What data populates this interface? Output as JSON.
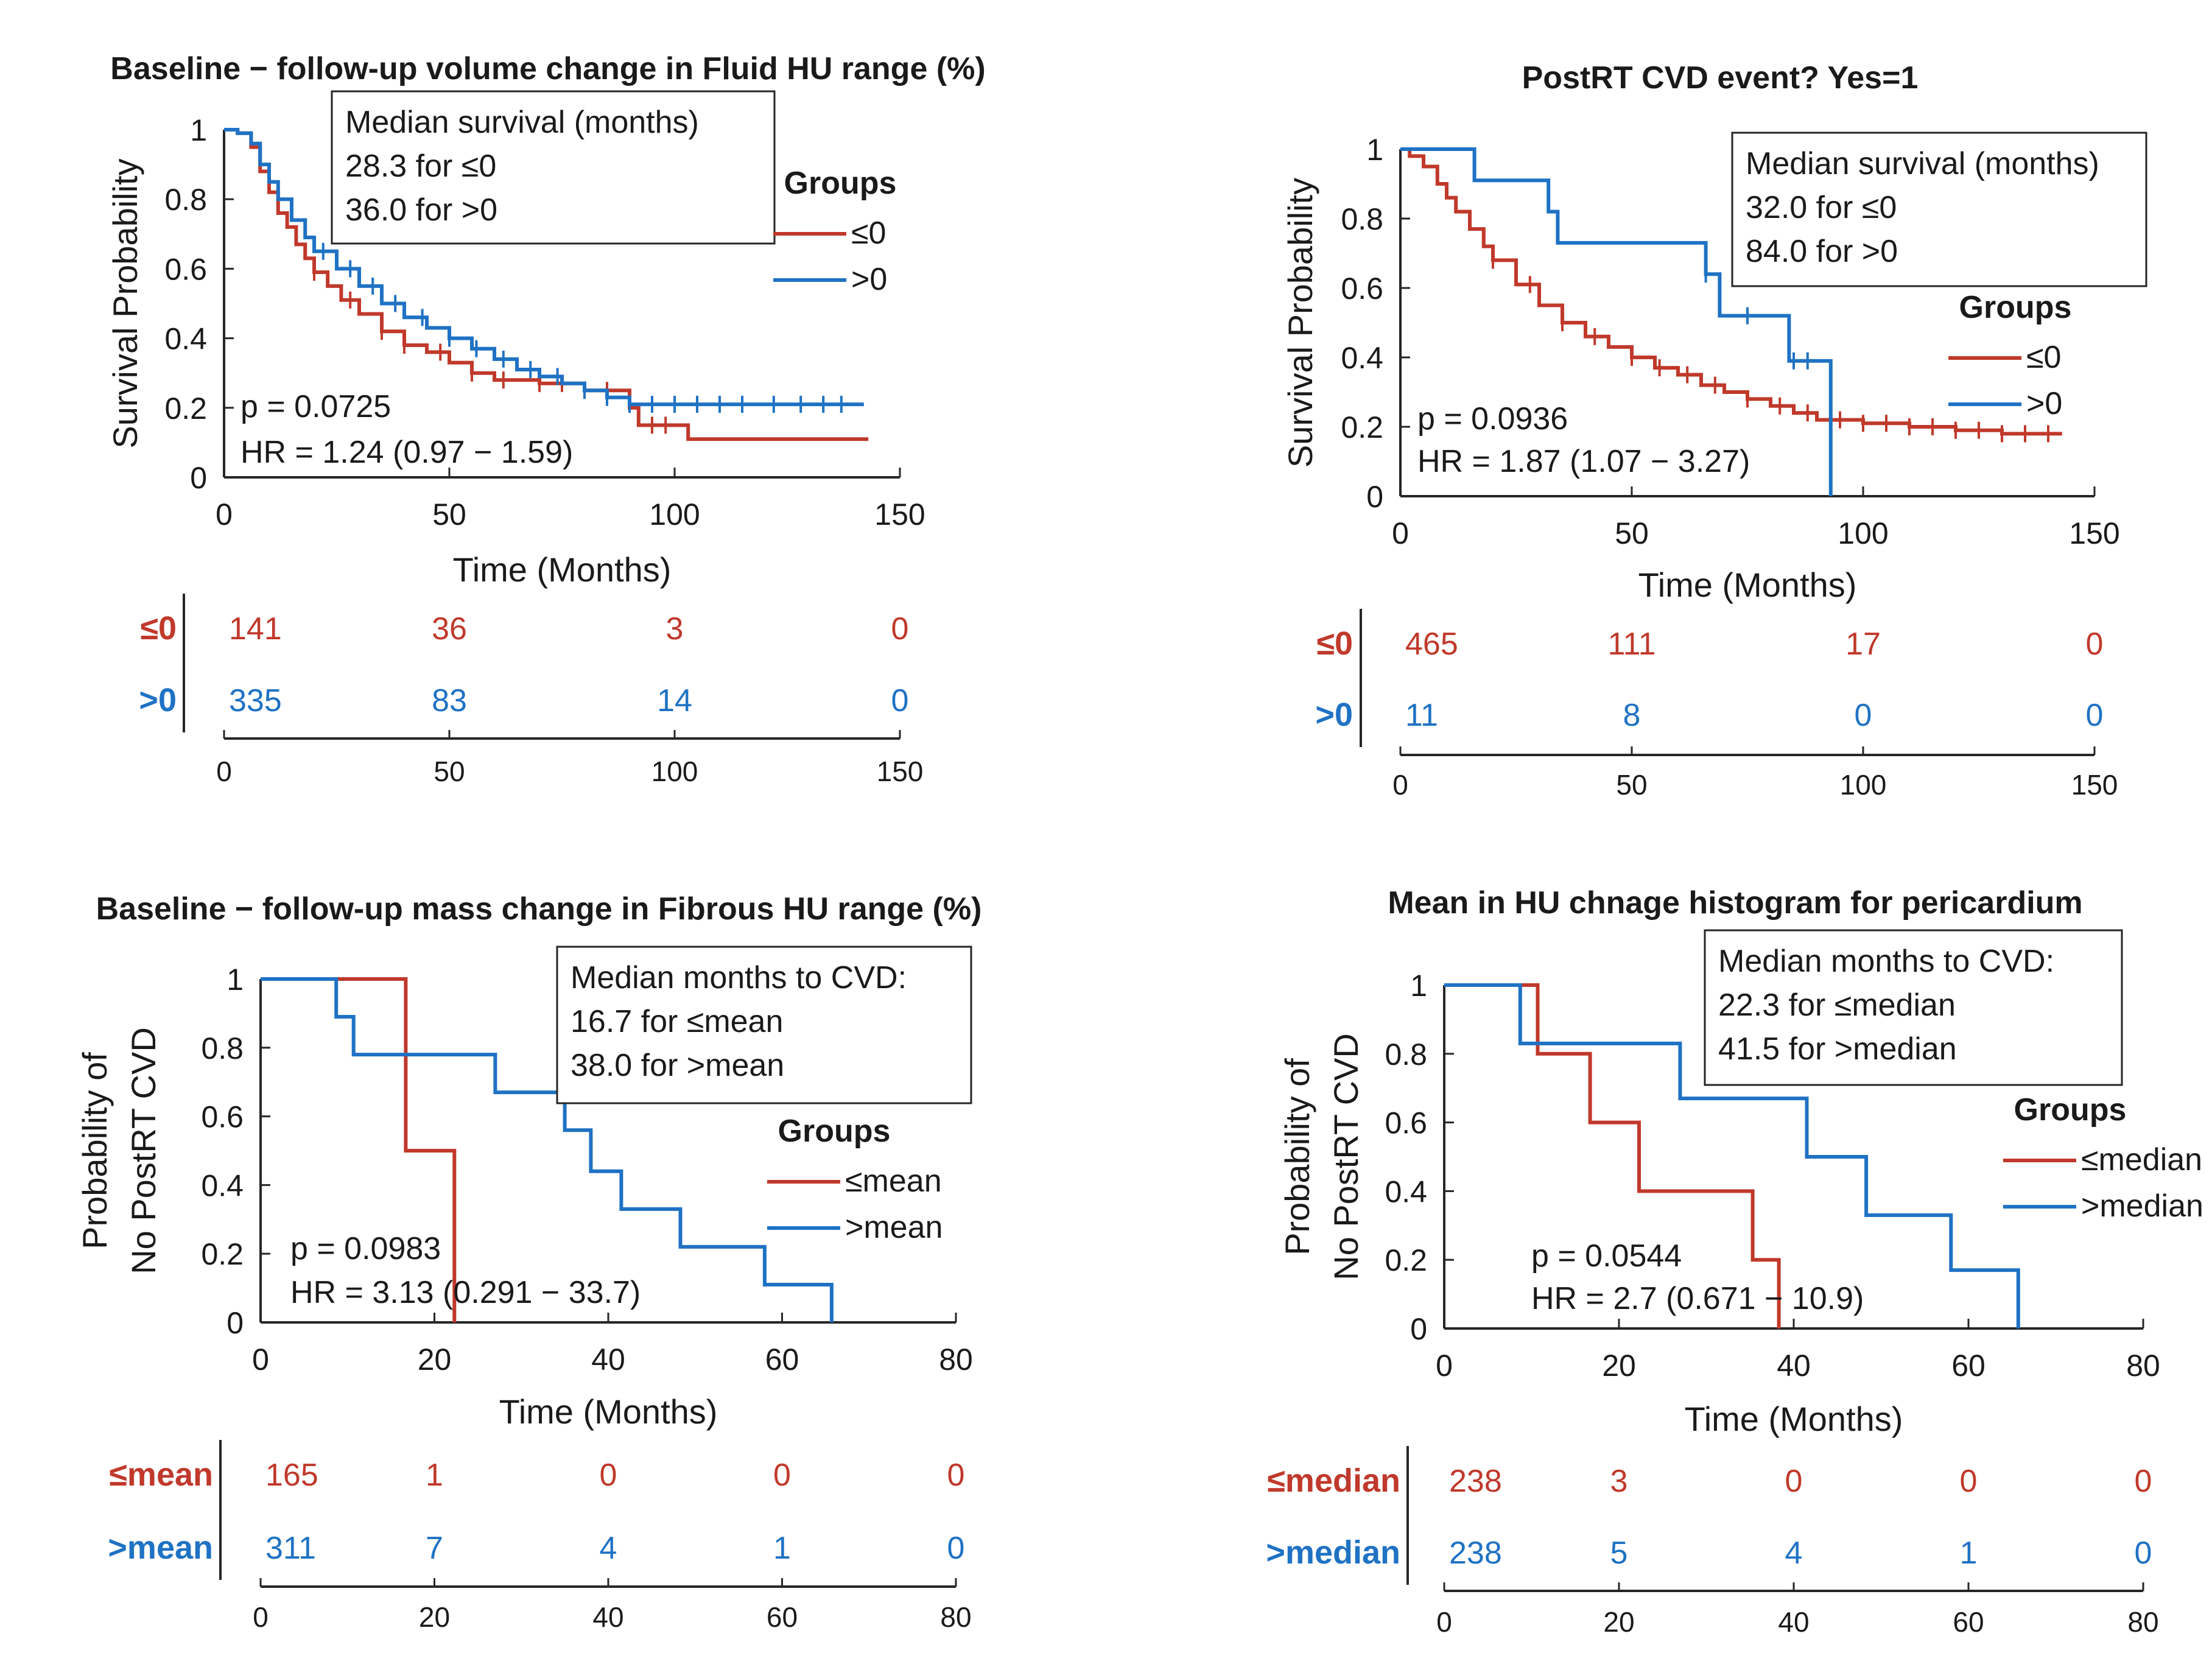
{
  "colors": {
    "red": "#C0392B",
    "blue": "#1F72C4",
    "axis": "#262626",
    "text": "#1a1a1a"
  },
  "chart_data": [
    {
      "type": "line",
      "title": "Baseline − follow-up volume change in Fluid HU range (%)",
      "ylabel": "Survival Probability",
      "ylabel_lines": [
        "Survival Probability"
      ],
      "xlabel": "Time (Months)",
      "xlim": [
        0,
        150
      ],
      "ylim": [
        0,
        1
      ],
      "x_ticks": [
        "0",
        "50",
        "100",
        "150"
      ],
      "x_tick_values": [
        0,
        50,
        100,
        150
      ],
      "y_ticks": [
        "0",
        "0.2",
        "0.4",
        "0.6",
        "0.8",
        "1"
      ],
      "y_tick_values": [
        0,
        0.2,
        0.4,
        0.6,
        0.8,
        1
      ],
      "annotation": {
        "title": "Median survival (months)",
        "lines": [
          "28.3 for ≤0",
          "36.0 for >0"
        ]
      },
      "legend_title": "Groups",
      "p_text": "p = 0.0725",
      "hr_text": "HR = 1.24 (0.97 − 1.59)",
      "series": [
        {
          "name": "≤0",
          "color": "red",
          "x": [
            0,
            3,
            6,
            8,
            10,
            12,
            14,
            16,
            18,
            20,
            23,
            26,
            30,
            35,
            40,
            45,
            50,
            55,
            60,
            70,
            80,
            90,
            92,
            100,
            103,
            143
          ],
          "y": [
            1,
            0.99,
            0.95,
            0.88,
            0.82,
            0.76,
            0.72,
            0.67,
            0.63,
            0.59,
            0.55,
            0.51,
            0.47,
            0.42,
            0.38,
            0.36,
            0.33,
            0.3,
            0.28,
            0.27,
            0.25,
            0.2,
            0.15,
            0.15,
            0.11,
            0.11
          ],
          "censors": [
            20,
            28,
            35,
            40,
            48,
            55,
            62,
            70,
            75,
            85,
            95,
            98
          ]
        },
        {
          "name": ">0",
          "color": "blue",
          "x": [
            0,
            3,
            6,
            8,
            10,
            12,
            15,
            18,
            20,
            25,
            30,
            35,
            40,
            45,
            50,
            55,
            60,
            65,
            70,
            75,
            80,
            85,
            90,
            142
          ],
          "y": [
            1,
            0.99,
            0.96,
            0.9,
            0.85,
            0.8,
            0.74,
            0.69,
            0.65,
            0.6,
            0.55,
            0.5,
            0.46,
            0.43,
            0.4,
            0.37,
            0.34,
            0.31,
            0.29,
            0.27,
            0.25,
            0.23,
            0.21,
            0.21
          ],
          "censors": [
            22,
            28,
            33,
            38,
            44,
            50,
            56,
            62,
            68,
            74,
            80,
            85,
            90,
            95,
            100,
            105,
            110,
            115,
            122,
            128,
            133,
            137
          ]
        }
      ],
      "risk_table": {
        "ticks": [
          "0",
          "50",
          "100",
          "150"
        ],
        "rows": [
          {
            "label": "≤0",
            "color": "red",
            "values": [
              "141",
              "36",
              "3",
              "0"
            ]
          },
          {
            "label": ">0",
            "color": "blue",
            "values": [
              "335",
              "83",
              "14",
              "0"
            ]
          }
        ]
      }
    },
    {
      "type": "line",
      "title": "PostRT CVD event? Yes=1",
      "ylabel": "Survival Probability",
      "ylabel_lines": [
        "Survival Probability"
      ],
      "xlabel": "Time (Months)",
      "xlim": [
        0,
        150
      ],
      "ylim": [
        0,
        1
      ],
      "x_ticks": [
        "0",
        "50",
        "100",
        "150"
      ],
      "x_tick_values": [
        0,
        50,
        100,
        150
      ],
      "y_ticks": [
        "0",
        "0.2",
        "0.4",
        "0.6",
        "0.8",
        "1"
      ],
      "y_tick_values": [
        0,
        0.2,
        0.4,
        0.6,
        0.8,
        1
      ],
      "annotation": {
        "title": "Median survival (months)",
        "lines": [
          "32.0 for ≤0",
          "84.0 for >0"
        ]
      },
      "legend_title": "Groups",
      "p_text": "p = 0.0936",
      "hr_text": "HR = 1.87 (1.07 − 3.27)",
      "series": [
        {
          "name": "≤0",
          "color": "red",
          "x": [
            0,
            2,
            5,
            8,
            10,
            12,
            15,
            18,
            20,
            25,
            30,
            35,
            40,
            45,
            50,
            55,
            60,
            65,
            70,
            75,
            80,
            85,
            90,
            100,
            110,
            120,
            130,
            143
          ],
          "y": [
            1,
            0.98,
            0.95,
            0.9,
            0.86,
            0.82,
            0.77,
            0.72,
            0.68,
            0.61,
            0.55,
            0.5,
            0.46,
            0.43,
            0.4,
            0.37,
            0.35,
            0.32,
            0.3,
            0.28,
            0.26,
            0.24,
            0.22,
            0.21,
            0.2,
            0.19,
            0.18,
            0.18
          ],
          "censors": [
            20,
            28,
            35,
            42,
            50,
            56,
            62,
            68,
            75,
            82,
            88,
            95,
            100,
            105,
            110,
            115,
            120,
            125,
            130,
            135,
            140
          ]
        },
        {
          "name": ">0",
          "color": "blue",
          "x": [
            0,
            16,
            16,
            32,
            32,
            34,
            34,
            66,
            66,
            69,
            69,
            84,
            84,
            93,
            93
          ],
          "y": [
            1,
            1,
            0.91,
            0.91,
            0.82,
            0.82,
            0.73,
            0.73,
            0.64,
            0.64,
            0.52,
            0.52,
            0.39,
            0.39,
            0
          ],
          "step": false,
          "censors": [
            66,
            75,
            85,
            88
          ]
        }
      ],
      "risk_table": {
        "ticks": [
          "0",
          "50",
          "100",
          "150"
        ],
        "rows": [
          {
            "label": "≤0",
            "color": "red",
            "values": [
              "465",
              "111",
              "17",
              "0"
            ]
          },
          {
            "label": ">0",
            "color": "blue",
            "values": [
              "11",
              "8",
              "0",
              "0"
            ]
          }
        ]
      }
    },
    {
      "type": "line",
      "title": "Baseline − follow-up mass change in Fibrous HU range (%)",
      "ylabel": "Probability of No PostRT CVD",
      "ylabel_lines": [
        "Probability of",
        "No PostRT CVD"
      ],
      "xlabel": "Time (Months)",
      "xlim": [
        0,
        80
      ],
      "ylim": [
        0,
        1
      ],
      "x_ticks": [
        "0",
        "20",
        "40",
        "60",
        "80"
      ],
      "x_tick_values": [
        0,
        20,
        40,
        60,
        80
      ],
      "y_ticks": [
        "0",
        "0.2",
        "0.4",
        "0.6",
        "0.8",
        "1"
      ],
      "y_tick_values": [
        0,
        0.2,
        0.4,
        0.6,
        0.8,
        1
      ],
      "annotation": {
        "title": "Median months to CVD:",
        "lines": [
          "16.7 for ≤mean",
          "38.0 for >mean"
        ]
      },
      "legend_title": "Groups",
      "p_text": "p = 0.0983",
      "hr_text": "HR = 3.13 (0.291 − 33.7)",
      "series": [
        {
          "name": "≤mean",
          "color": "red",
          "x": [
            0,
            16.7,
            16.7,
            22.3,
            22.3
          ],
          "y": [
            1,
            1,
            0.5,
            0.5,
            0
          ],
          "step": false,
          "censors": []
        },
        {
          "name": ">mean",
          "color": "blue",
          "x": [
            0,
            8.7,
            8.7,
            10.7,
            10.7,
            27,
            27,
            35,
            35,
            38,
            38,
            41.5,
            41.5,
            48.3,
            48.3,
            58,
            58,
            65.7,
            65.7
          ],
          "y": [
            1,
            1,
            0.89,
            0.89,
            0.78,
            0.78,
            0.67,
            0.67,
            0.56,
            0.56,
            0.44,
            0.44,
            0.33,
            0.33,
            0.22,
            0.22,
            0.11,
            0.11,
            0
          ],
          "step": false,
          "censors": []
        }
      ],
      "risk_table": {
        "ticks": [
          "0",
          "20",
          "40",
          "60",
          "80"
        ],
        "rows": [
          {
            "label": "≤mean",
            "color": "red",
            "values": [
              "165",
              "1",
              "0",
              "0",
              "0"
            ]
          },
          {
            "label": ">mean",
            "color": "blue",
            "values": [
              "311",
              "7",
              "4",
              "1",
              "0"
            ]
          }
        ]
      }
    },
    {
      "type": "line",
      "title": "Mean in HU chnage histogram for pericardium",
      "ylabel": "Probability of No PostRT CVD",
      "ylabel_lines": [
        "Probability of",
        "No PostRT CVD"
      ],
      "xlabel": "Time (Months)",
      "xlim": [
        0,
        80
      ],
      "ylim": [
        0,
        1
      ],
      "x_ticks": [
        "0",
        "20",
        "40",
        "60",
        "80"
      ],
      "x_tick_values": [
        0,
        20,
        40,
        60,
        80
      ],
      "y_ticks": [
        "0",
        "0.2",
        "0.4",
        "0.6",
        "0.8",
        "1"
      ],
      "y_tick_values": [
        0,
        0.2,
        0.4,
        0.6,
        0.8,
        1
      ],
      "annotation": {
        "title": "Median months to CVD:",
        "lines": [
          "22.3 for ≤median",
          "41.5 for >median"
        ]
      },
      "legend_title": "Groups",
      "p_text": "p = 0.0544",
      "hr_text": "HR = 2.7 (0.671 − 10.9)",
      "series": [
        {
          "name": "≤median",
          "color": "red",
          "x": [
            0,
            10.7,
            10.7,
            16.7,
            16.7,
            22.3,
            22.3,
            35.3,
            35.3,
            38.3,
            38.3
          ],
          "y": [
            1,
            1,
            0.8,
            0.8,
            0.6,
            0.6,
            0.4,
            0.4,
            0.2,
            0.2,
            0
          ],
          "step": false,
          "censors": []
        },
        {
          "name": ">median",
          "color": "blue",
          "x": [
            0,
            8.7,
            8.7,
            27,
            27,
            41.5,
            41.5,
            48.3,
            48.3,
            58,
            58,
            65.7,
            65.7
          ],
          "y": [
            1,
            1,
            0.83,
            0.83,
            0.67,
            0.67,
            0.5,
            0.5,
            0.33,
            0.33,
            0.17,
            0.17,
            0
          ],
          "step": false,
          "censors": []
        }
      ],
      "risk_table": {
        "ticks": [
          "0",
          "20",
          "40",
          "60",
          "80"
        ],
        "rows": [
          {
            "label": "≤median",
            "color": "red",
            "values": [
              "238",
              "3",
              "0",
              "0",
              "0"
            ]
          },
          {
            "label": ">median",
            "color": "blue",
            "values": [
              "238",
              "5",
              "4",
              "1",
              "0"
            ]
          }
        ]
      }
    }
  ]
}
